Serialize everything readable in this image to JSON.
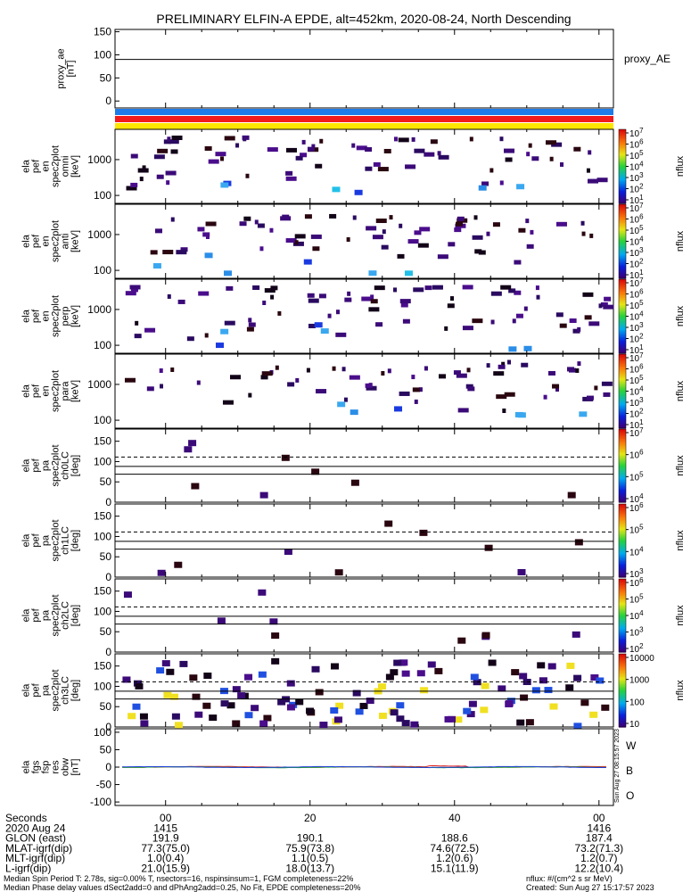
{
  "title": "PRELIMINARY ELFIN-A EPDE, alt=452km, 2020-08-24, North Descending",
  "ae_panel": {
    "ylabel": [
      "proxy_ae",
      "[nT]"
    ],
    "ticks": [
      "150",
      "100",
      "50",
      "0"
    ],
    "legend": "proxy_AE",
    "ylim": [
      -15,
      155
    ],
    "value": 90
  },
  "bars": [
    "#1f7be8",
    "#f21a1a",
    "#ffe600"
  ],
  "spec_panels": [
    {
      "ylabel": [
        "ela",
        "pef",
        "en",
        "spec2plot",
        "omni",
        "[keV]"
      ],
      "ticks": [
        "1000",
        "100"
      ],
      "cb_ticks": [
        "10^7",
        "10^6",
        "10^5",
        "10^4",
        "10^3",
        "10^2",
        "10^1"
      ],
      "cb_label": "nflux"
    },
    {
      "ylabel": [
        "ela",
        "pef",
        "en",
        "spec2plot",
        "anti",
        "[keV]"
      ],
      "ticks": [
        "1000",
        "100"
      ],
      "cb_ticks": [
        "10^7",
        "10^6",
        "10^5",
        "10^4",
        "10^3",
        "10^2",
        "10^1"
      ],
      "cb_label": "nflux"
    },
    {
      "ylabel": [
        "ela",
        "pef",
        "en",
        "spec2plot",
        "perp",
        "[keV]"
      ],
      "ticks": [
        "1000",
        "100"
      ],
      "cb_ticks": [
        "10^7",
        "10^6",
        "10^5",
        "10^4",
        "10^3",
        "10^2",
        "10^1"
      ],
      "cb_label": "nflux"
    },
    {
      "ylabel": [
        "ela",
        "pef",
        "en",
        "spec2plot",
        "para",
        "[keV]"
      ],
      "ticks": [
        "1000",
        "100"
      ],
      "cb_ticks": [
        "10^7",
        "10^6",
        "10^5",
        "10^4",
        "10^3",
        "10^2",
        "10^1"
      ],
      "cb_label": "nflux"
    }
  ],
  "pa_panels": [
    {
      "ylabel": [
        "ela",
        "pef",
        "pa",
        "spec2plot",
        "ch0LC",
        "[deg]"
      ],
      "ticks": [
        "150",
        "100",
        "50",
        "0"
      ],
      "cb_ticks": [
        "10^7",
        "10^6",
        "10^5",
        "10^4"
      ],
      "cb_label": "nflux"
    },
    {
      "ylabel": [
        "ela",
        "pef",
        "pa",
        "spec2plot",
        "ch1LC",
        "[deg]"
      ],
      "ticks": [
        "150",
        "100",
        "50",
        "0"
      ],
      "cb_ticks": [
        "10^6",
        "10^5",
        "10^4",
        "10^3"
      ],
      "cb_label": "nflux"
    },
    {
      "ylabel": [
        "ela",
        "pef",
        "pa",
        "spec2plot",
        "ch2LC",
        "[deg]"
      ],
      "ticks": [
        "150",
        "100",
        "50",
        "0"
      ],
      "cb_ticks": [
        "10^6",
        "10^5",
        "10^4",
        "10^3",
        "10^2"
      ],
      "cb_label": "nflux"
    },
    {
      "ylabel": [
        "ela",
        "pef",
        "pa",
        "spec2plot",
        "ch3LC",
        "[deg]"
      ],
      "ticks": [
        "150",
        "100",
        "50",
        "0"
      ],
      "cb_ticks": [
        "10000",
        "1000",
        "100",
        "10"
      ],
      "cb_label": "nflux"
    }
  ],
  "pa_lines": {
    "dashed": 111,
    "solid": [
      88,
      69
    ]
  },
  "fgm_panel": {
    "ylabel": [
      "ela",
      "fgs",
      "fsp",
      "res",
      "obw",
      "[nT]"
    ],
    "ticks": [
      "100",
      "50",
      "0",
      "-50",
      "-100"
    ],
    "ylim": [
      -110,
      110
    ],
    "legend": [
      {
        "label": "W",
        "color": "#e0201b"
      },
      {
        "label": "B",
        "color": "#18a82a"
      },
      {
        "label": "O",
        "color": "#1c3fd6"
      }
    ]
  },
  "side_stamp": "Sun Aug 27 08:15:57 2023",
  "time_axis": {
    "major_ticks": [
      "00",
      "20",
      "40",
      "00"
    ],
    "rows": [
      {
        "label": "Seconds",
        "values": [
          "00",
          "20",
          "40",
          "00"
        ]
      },
      {
        "label": "2020 Aug 24",
        "values": [
          "1415",
          "",
          "",
          "1416"
        ]
      },
      {
        "label": "GLON (east)",
        "values": [
          "191.9",
          "190.1",
          "188.6",
          "187.4"
        ]
      },
      {
        "label": "MLAT-igrf(dip)",
        "values": [
          "77.3(75.0)",
          "75.9(73.8)",
          "74.6(72.5)",
          "73.2(71.3)"
        ]
      },
      {
        "label": "MLT-igrf(dip)",
        "values": [
          "1.0(0.4)",
          "1.1(0.5)",
          "1.2(0.6)",
          "1.2(0.7)"
        ]
      },
      {
        "label": "L-igrf(dip)",
        "values": [
          "21.0(15.9)",
          "18.0(13.7)",
          "15.1(11.9)",
          "12.2(10.4)"
        ]
      }
    ]
  },
  "footer": {
    "line1_left": "Median Spin Period T: 2.78s, sig=0.00% T, nsectors=16, nspinsinsum=1, FGM completeness=22%",
    "line1_right": "nflux: #/(cm^2 s sr MeV)",
    "line2_left": "Median Phase delay values dSect2add=0 and dPhAng2add=0.25, No Fit, EPDE completeness=20%",
    "line2_right": "Created: Sun Aug 27 15:17:57 2023"
  },
  "chart_data": {
    "type": "heatmap",
    "title": "PRELIMINARY ELFIN-A EPDE, alt=452km, 2020-08-24, North Descending",
    "x_range_seconds": [
      -7,
      62
    ],
    "x_ticks_seconds": [
      0,
      20,
      40,
      60
    ],
    "energy_ylim_keV": [
      60,
      7000
    ],
    "pa_ylim_deg": [
      0,
      180
    ],
    "series": [
      {
        "name": "proxy_AE",
        "values": [
          90,
          90
        ]
      }
    ]
  }
}
